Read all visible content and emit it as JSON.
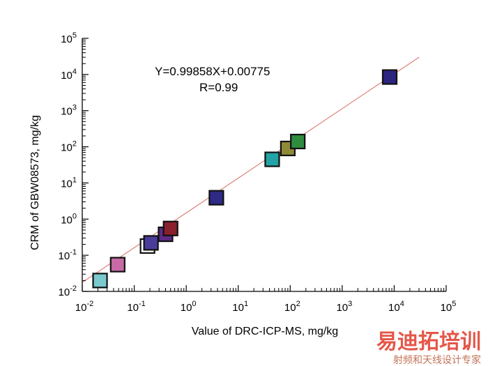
{
  "chart_data": {
    "type": "scatter",
    "xlabel": "Value of DRC-ICP-MS, mg/kg",
    "ylabel": "CRM of GBW08573, mg/kg",
    "xscale": "log",
    "yscale": "log",
    "xlim": [
      0.01,
      100000
    ],
    "ylim": [
      0.01,
      100000
    ],
    "x_ticks": [
      {
        "base": "10",
        "exp": "-2"
      },
      {
        "base": "10",
        "exp": "-1"
      },
      {
        "base": "10",
        "exp": "0"
      },
      {
        "base": "10",
        "exp": "1"
      },
      {
        "base": "10",
        "exp": "2"
      },
      {
        "base": "10",
        "exp": "3"
      },
      {
        "base": "10",
        "exp": "4"
      },
      {
        "base": "10",
        "exp": "5"
      }
    ],
    "y_ticks": [
      {
        "base": "10",
        "exp": "-2"
      },
      {
        "base": "10",
        "exp": "-1"
      },
      {
        "base": "10",
        "exp": "0"
      },
      {
        "base": "10",
        "exp": "1"
      },
      {
        "base": "10",
        "exp": "2"
      },
      {
        "base": "10",
        "exp": "3"
      },
      {
        "base": "10",
        "exp": "4"
      },
      {
        "base": "10",
        "exp": "5"
      }
    ],
    "points": [
      {
        "x": 0.022,
        "y": 0.02,
        "color": "#79c9cf"
      },
      {
        "x": 0.048,
        "y": 0.055,
        "color": "#c86aa6"
      },
      {
        "x": 0.18,
        "y": 0.18,
        "color": "#ffffff"
      },
      {
        "x": 0.21,
        "y": 0.22,
        "color": "#4a3d9a"
      },
      {
        "x": 0.4,
        "y": 0.38,
        "color": "#5d2a86"
      },
      {
        "x": 0.5,
        "y": 0.55,
        "color": "#8a1f2e"
      },
      {
        "x": 3.8,
        "y": 3.9,
        "color": "#2e2a86"
      },
      {
        "x": 45,
        "y": 45,
        "color": "#23a3a5"
      },
      {
        "x": 90,
        "y": 90,
        "color": "#8e8a36"
      },
      {
        "x": 140,
        "y": 140,
        "color": "#2f8b3e"
      },
      {
        "x": 8200,
        "y": 8500,
        "color": "#2b2480"
      }
    ],
    "fit_line": {
      "slope": 0.99858,
      "intercept": 0.00775,
      "x_range": [
        0.01,
        30000
      ],
      "color": "#d66a5f"
    },
    "annotation_equation": "Y=0.99858X+0.00775",
    "annotation_r": "R=0.99",
    "grid": false,
    "legend": "none"
  },
  "watermark": {
    "title": "易迪拓培训",
    "subtitle": "射频和天线设计专家"
  },
  "colors": {
    "axis": "#000000",
    "marker_outline": "#111111",
    "watermark": "#e03a2a"
  }
}
